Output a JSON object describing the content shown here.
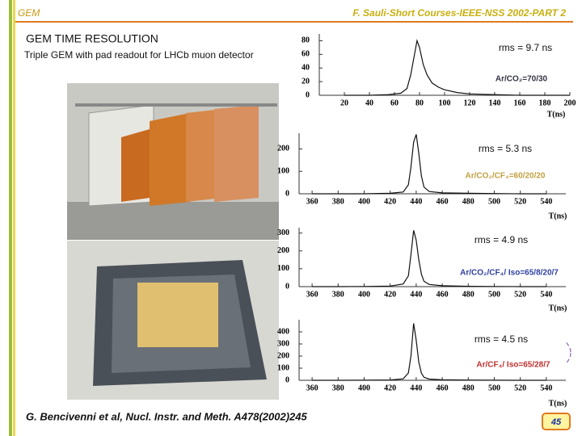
{
  "header": {
    "left": "GEM",
    "right": "F. Sauli-Short Courses-IEEE-NSS 2002-PART 2"
  },
  "title": "GEM TIME RESOLUTION",
  "subtitle": "Triple GEM with pad readout for LHCb muon detector",
  "reference": "G. Bencivenni et al, Nucl. Instr. and Meth. A478(2002)245",
  "page_number": "45",
  "chart_data": [
    {
      "type": "line",
      "x_label": "T(ns)",
      "annotations": [
        "rms = 9.7 ns",
        "Ar/CO₂=70/30"
      ],
      "x": [
        20,
        40,
        55,
        65,
        70,
        73,
        76,
        78,
        80,
        83,
        86,
        90,
        95,
        100,
        110,
        120,
        140,
        160,
        180,
        200
      ],
      "values": [
        0,
        0,
        1,
        3,
        10,
        30,
        60,
        80,
        70,
        45,
        30,
        18,
        12,
        8,
        4,
        2,
        1,
        0,
        0,
        0
      ],
      "color": "#111111",
      "xlim": [
        0,
        200
      ],
      "xticks": [
        20,
        40,
        60,
        80,
        100,
        120,
        140,
        160,
        180,
        200
      ],
      "ylim": [
        0,
        90
      ],
      "yticks": [
        0,
        20,
        40,
        60,
        80
      ]
    },
    {
      "type": "line",
      "x_label": "T(ns)",
      "annotations": [
        "rms = 5.3 ns",
        "Ar/CO₂/CF₄=60/20/20"
      ],
      "x": [
        360,
        380,
        400,
        420,
        430,
        434,
        436,
        438,
        440,
        442,
        444,
        446,
        450,
        460,
        480,
        500,
        520,
        540
      ],
      "values": [
        0,
        0,
        0,
        2,
        8,
        40,
        120,
        230,
        265,
        180,
        80,
        30,
        10,
        4,
        2,
        1,
        0,
        0
      ],
      "color": "#111111",
      "xlim": [
        350,
        555
      ],
      "xticks": [
        360,
        380,
        400,
        420,
        440,
        460,
        480,
        500,
        520,
        540
      ],
      "ylim": [
        0,
        270
      ],
      "yticks": [
        0,
        100,
        200
      ]
    },
    {
      "type": "line",
      "x_label": "T(ns)",
      "annotations": [
        "rms = 4.9 ns",
        "Ar/CO₂/CF₄/ Iso=65/8/20/7"
      ],
      "x": [
        360,
        380,
        400,
        420,
        430,
        434,
        436,
        438,
        440,
        442,
        444,
        446,
        450,
        460,
        480,
        500,
        520,
        540
      ],
      "values": [
        0,
        0,
        1,
        3,
        15,
        60,
        180,
        315,
        260,
        150,
        70,
        30,
        12,
        5,
        2,
        1,
        0,
        0
      ],
      "color": "#111111",
      "xlim": [
        350,
        555
      ],
      "xticks": [
        360,
        380,
        400,
        420,
        440,
        460,
        480,
        500,
        520,
        540
      ],
      "ylim": [
        0,
        330
      ],
      "yticks": [
        0,
        100,
        200,
        300
      ]
    },
    {
      "type": "line",
      "x_label": "T(ns)",
      "annotations": [
        "rms = 4.5 ns",
        "Ar/CF₄/ Iso=65/28/7"
      ],
      "x": [
        360,
        380,
        400,
        420,
        430,
        434,
        436,
        438,
        440,
        442,
        444,
        446,
        450,
        460,
        480,
        500,
        520,
        540
      ],
      "values": [
        0,
        0,
        1,
        3,
        12,
        60,
        200,
        470,
        330,
        150,
        60,
        25,
        10,
        5,
        2,
        1,
        0,
        0
      ],
      "color": "#111111",
      "xlim": [
        350,
        555
      ],
      "xticks": [
        360,
        380,
        400,
        420,
        440,
        460,
        480,
        500,
        520,
        540
      ],
      "ylim": [
        0,
        500
      ],
      "yticks": [
        0,
        100,
        200,
        300,
        400
      ]
    }
  ]
}
